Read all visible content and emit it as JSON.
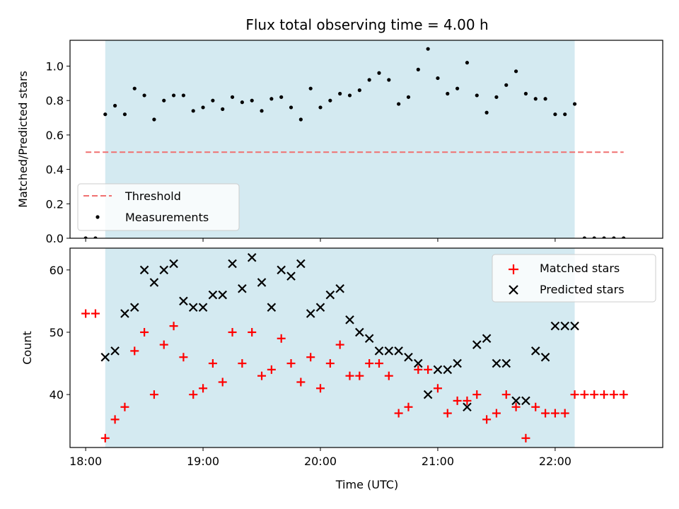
{
  "chart_data": [
    {
      "type": "scatter",
      "title": "Flux total observing time = 4.00 h",
      "xlabel": "",
      "ylabel": "Matched/Predicted stars",
      "xlim": [
        "17:52",
        "22:55"
      ],
      "ylim": [
        0,
        1.15
      ],
      "yticks": [
        "0.0",
        "0.2",
        "0.4",
        "0.6",
        "0.8",
        "1.0"
      ],
      "shaded_span": [
        "18:10",
        "22:10"
      ],
      "shaded_color": "#d4eaf1",
      "legend_position": "lower-left",
      "threshold": {
        "name": "Threshold",
        "value": 0.5,
        "x_range": [
          "18:00",
          "22:35"
        ],
        "color": "#f07070"
      },
      "series": [
        {
          "name": "Measurements",
          "color": "#000000",
          "times": [
            "18:00",
            "18:05",
            "18:10",
            "18:15",
            "18:20",
            "18:25",
            "18:30",
            "18:35",
            "18:40",
            "18:45",
            "18:50",
            "18:55",
            "19:00",
            "19:05",
            "19:10",
            "19:15",
            "19:20",
            "19:25",
            "19:30",
            "19:35",
            "19:40",
            "19:45",
            "19:50",
            "19:55",
            "20:00",
            "20:05",
            "20:10",
            "20:15",
            "20:20",
            "20:25",
            "20:30",
            "20:35",
            "20:40",
            "20:45",
            "20:50",
            "20:55",
            "21:00",
            "21:05",
            "21:10",
            "21:15",
            "21:20",
            "21:25",
            "21:30",
            "21:35",
            "21:40",
            "21:45",
            "21:50",
            "21:55",
            "22:00",
            "22:05",
            "22:10",
            "22:15",
            "22:20",
            "22:25",
            "22:30",
            "22:35"
          ],
          "values": [
            0.0,
            0.0,
            0.72,
            0.77,
            0.72,
            0.87,
            0.83,
            0.69,
            0.8,
            0.83,
            0.83,
            0.74,
            0.76,
            0.8,
            0.75,
            0.82,
            0.79,
            0.8,
            0.74,
            0.81,
            0.82,
            0.76,
            0.69,
            0.87,
            0.76,
            0.8,
            0.84,
            0.83,
            0.86,
            0.92,
            0.96,
            0.92,
            0.78,
            0.82,
            0.98,
            1.1,
            0.93,
            0.84,
            0.87,
            1.02,
            0.83,
            0.73,
            0.82,
            0.89,
            0.97,
            0.84,
            0.81,
            0.81,
            0.72,
            0.72,
            0.78,
            0.0,
            0.0,
            0.0,
            0.0,
            0.0
          ]
        }
      ]
    },
    {
      "type": "scatter",
      "title": "",
      "xlabel": "Time (UTC)",
      "ylabel": "Count",
      "xlim": [
        "17:52",
        "22:55"
      ],
      "ylim": [
        31.5,
        63.5
      ],
      "yticks": [
        "40",
        "50",
        "60"
      ],
      "xticks": [
        "18:00",
        "19:00",
        "20:00",
        "21:00",
        "22:00"
      ],
      "shaded_span": [
        "18:10",
        "22:10"
      ],
      "legend_position": "upper-right",
      "series": [
        {
          "name": "Matched stars",
          "marker": "+",
          "color": "#ff0000",
          "times": [
            "18:00",
            "18:05",
            "18:10",
            "18:15",
            "18:20",
            "18:25",
            "18:30",
            "18:35",
            "18:40",
            "18:45",
            "18:50",
            "18:55",
            "19:00",
            "19:05",
            "19:10",
            "19:15",
            "19:20",
            "19:25",
            "19:30",
            "19:35",
            "19:40",
            "19:45",
            "19:50",
            "19:55",
            "20:00",
            "20:05",
            "20:10",
            "20:15",
            "20:20",
            "20:25",
            "20:30",
            "20:35",
            "20:40",
            "20:45",
            "20:50",
            "20:55",
            "21:00",
            "21:05",
            "21:10",
            "21:15",
            "21:20",
            "21:25",
            "21:30",
            "21:35",
            "21:40",
            "21:45",
            "21:50",
            "21:55",
            "22:00",
            "22:05",
            "22:10",
            "22:15",
            "22:20",
            "22:25",
            "22:30",
            "22:35"
          ],
          "values": [
            53,
            53,
            33,
            36,
            38,
            47,
            50,
            40,
            48,
            51,
            46,
            40,
            41,
            45,
            42,
            50,
            45,
            50,
            43,
            44,
            49,
            45,
            42,
            46,
            41,
            45,
            48,
            43,
            43,
            45,
            45,
            43,
            37,
            38,
            44,
            44,
            41,
            37,
            39,
            39,
            40,
            36,
            37,
            40,
            38,
            33,
            38,
            37,
            37,
            37,
            40,
            40,
            40,
            40,
            40,
            40
          ]
        },
        {
          "name": "Predicted stars",
          "marker": "x",
          "color": "#000000",
          "times": [
            "18:10",
            "18:15",
            "18:20",
            "18:25",
            "18:30",
            "18:35",
            "18:40",
            "18:45",
            "18:50",
            "18:55",
            "19:00",
            "19:05",
            "19:10",
            "19:15",
            "19:20",
            "19:25",
            "19:30",
            "19:35",
            "19:40",
            "19:45",
            "19:50",
            "19:55",
            "20:00",
            "20:05",
            "20:10",
            "20:15",
            "20:20",
            "20:25",
            "20:30",
            "20:35",
            "20:40",
            "20:45",
            "20:50",
            "20:55",
            "21:00",
            "21:05",
            "21:10",
            "21:15",
            "21:20",
            "21:25",
            "21:30",
            "21:35",
            "21:40",
            "21:45",
            "21:50",
            "21:55",
            "22:00",
            "22:05",
            "22:10"
          ],
          "values": [
            46,
            47,
            53,
            54,
            60,
            58,
            60,
            61,
            55,
            54,
            54,
            56,
            56,
            61,
            57,
            62,
            58,
            54,
            60,
            59,
            61,
            53,
            54,
            56,
            57,
            52,
            50,
            49,
            47,
            47,
            47,
            46,
            45,
            40,
            44,
            44,
            45,
            38,
            48,
            49,
            45,
            45,
            39,
            39,
            47,
            46,
            51,
            51,
            51
          ]
        }
      ]
    }
  ]
}
